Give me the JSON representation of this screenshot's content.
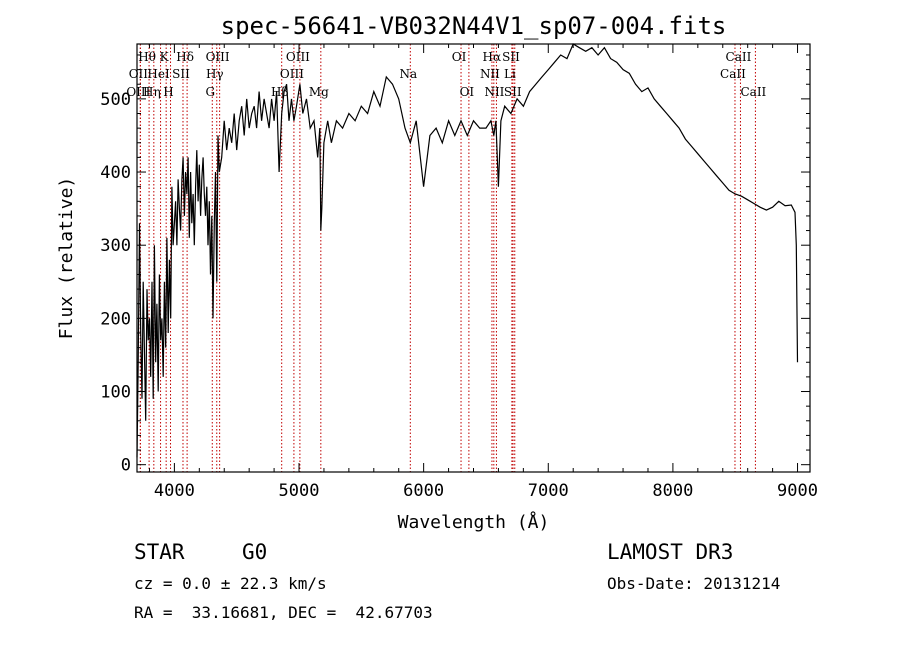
{
  "chart_data": {
    "type": "line",
    "title": "spec-56641-VB032N44V1_sp07-004.fits",
    "xlabel": "Wavelength (Å)",
    "ylabel": "Flux (relative)",
    "xlim": [
      3700,
      9100
    ],
    "ylim": [
      -10,
      575
    ],
    "x_ticks": [
      4000,
      5000,
      6000,
      7000,
      8000,
      9000
    ],
    "y_ticks": [
      0,
      100,
      200,
      300,
      400,
      500
    ],
    "grid": false,
    "line_color": "#000000",
    "marker_color": "#c00000",
    "series": [
      {
        "name": "spectrum",
        "x": [
          3700,
          3710,
          3720,
          3730,
          3740,
          3750,
          3760,
          3770,
          3780,
          3790,
          3800,
          3810,
          3820,
          3830,
          3840,
          3850,
          3860,
          3870,
          3880,
          3890,
          3900,
          3910,
          3920,
          3930,
          3940,
          3950,
          3960,
          3970,
          3980,
          3990,
          4000,
          4010,
          4020,
          4030,
          4040,
          4050,
          4060,
          4070,
          4080,
          4090,
          4100,
          4110,
          4120,
          4130,
          4140,
          4150,
          4160,
          4170,
          4180,
          4190,
          4200,
          4210,
          4220,
          4230,
          4240,
          4250,
          4260,
          4270,
          4280,
          4290,
          4300,
          4310,
          4320,
          4330,
          4340,
          4350,
          4360,
          4380,
          4400,
          4420,
          4440,
          4460,
          4480,
          4500,
          4520,
          4540,
          4560,
          4580,
          4600,
          4620,
          4640,
          4660,
          4680,
          4700,
          4720,
          4740,
          4760,
          4780,
          4800,
          4820,
          4840,
          4861,
          4880,
          4900,
          4920,
          4940,
          4959,
          4980,
          5007,
          5030,
          5060,
          5090,
          5120,
          5150,
          5167,
          5172,
          5175,
          5183,
          5200,
          5230,
          5260,
          5300,
          5350,
          5400,
          5450,
          5500,
          5550,
          5600,
          5650,
          5700,
          5750,
          5800,
          5850,
          5893,
          5940,
          6000,
          6050,
          6100,
          6150,
          6200,
          6250,
          6300,
          6350,
          6400,
          6450,
          6500,
          6540,
          6563,
          6580,
          6600,
          6620,
          6650,
          6700,
          6750,
          6800,
          6850,
          6900,
          6950,
          7000,
          7050,
          7100,
          7150,
          7200,
          7250,
          7300,
          7350,
          7400,
          7450,
          7500,
          7550,
          7600,
          7650,
          7700,
          7750,
          7800,
          7850,
          7900,
          7950,
          8000,
          8050,
          8100,
          8150,
          8200,
          8250,
          8300,
          8350,
          8400,
          8450,
          8500,
          8550,
          8600,
          8650,
          8700,
          8750,
          8800,
          8850,
          8900,
          8950,
          8980,
          8990,
          9000
        ],
        "values": [
          10,
          140,
          330,
          180,
          90,
          250,
          150,
          60,
          240,
          170,
          200,
          120,
          250,
          90,
          300,
          140,
          220,
          100,
          260,
          170,
          200,
          120,
          250,
          160,
          310,
          180,
          280,
          200,
          380,
          300,
          330,
          360,
          300,
          390,
          350,
          320,
          390,
          420,
          340,
          400,
          370,
          420,
          310,
          400,
          330,
          370,
          300,
          380,
          430,
          360,
          410,
          340,
          390,
          420,
          370,
          340,
          380,
          300,
          360,
          260,
          340,
          200,
          330,
          400,
          250,
          450,
          400,
          420,
          470,
          430,
          460,
          440,
          480,
          430,
          470,
          490,
          450,
          500,
          460,
          480,
          490,
          460,
          510,
          470,
          500,
          480,
          460,
          500,
          470,
          510,
          400,
          480,
          510,
          520,
          470,
          500,
          470,
          490,
          520,
          480,
          500,
          460,
          470,
          420,
          460,
          370,
          320,
          350,
          440,
          470,
          440,
          470,
          460,
          480,
          470,
          490,
          480,
          510,
          490,
          530,
          520,
          500,
          460,
          440,
          470,
          380,
          450,
          460,
          440,
          470,
          450,
          470,
          450,
          470,
          460,
          460,
          470,
          450,
          470,
          380,
          470,
          490,
          480,
          500,
          490,
          510,
          520,
          530,
          540,
          550,
          560,
          555,
          575,
          570,
          565,
          570,
          560,
          570,
          555,
          550,
          540,
          535,
          520,
          510,
          515,
          500,
          490,
          480,
          470,
          460,
          445,
          435,
          425,
          415,
          405,
          395,
          385,
          375,
          370,
          367,
          362,
          357,
          352,
          348,
          352,
          360,
          354,
          355,
          345,
          300,
          140
        ]
      }
    ],
    "lines": [
      {
        "label": "Hθ",
        "wavelength": 3797
      },
      {
        "label": "OII",
        "wavelength": 3727
      },
      {
        "label": "OIII",
        "wavelength": 3727
      },
      {
        "label": "K",
        "wavelength": 3934
      },
      {
        "label": "HeI",
        "wavelength": 3889
      },
      {
        "label": "Hη",
        "wavelength": 3835
      },
      {
        "label": "Hδ",
        "wavelength": 4102
      },
      {
        "label": "SII",
        "wavelength": 4069
      },
      {
        "label": "H",
        "wavelength": 3969
      },
      {
        "label": "OIII",
        "wavelength": 4363
      },
      {
        "label": "Hγ",
        "wavelength": 4340
      },
      {
        "label": "G",
        "wavelength": 4304
      },
      {
        "label": "Hβ",
        "wavelength": 4861
      },
      {
        "label": "OIII",
        "wavelength": 5007
      },
      {
        "label": "OIII",
        "wavelength": 4959
      },
      {
        "label": "Mg",
        "wavelength": 5175
      },
      {
        "label": "Na",
        "wavelength": 5893
      },
      {
        "label": "OI",
        "wavelength": 6300
      },
      {
        "label": "OI",
        "wavelength": 6363
      },
      {
        "label": "Hα",
        "wavelength": 6563
      },
      {
        "label": "SII",
        "wavelength": 6717
      },
      {
        "label": "NII",
        "wavelength": 6548
      },
      {
        "label": "Li",
        "wavelength": 6708
      },
      {
        "label": "NII",
        "wavelength": 6584
      },
      {
        "label": "SII",
        "wavelength": 6731
      },
      {
        "label": "CaII",
        "wavelength": 8542
      },
      {
        "label": "CaII",
        "wavelength": 8498
      },
      {
        "label": "CaII",
        "wavelength": 8662
      }
    ]
  },
  "info": {
    "class": "STAR",
    "subclass": "G0",
    "survey": "LAMOST DR3",
    "redshift": "cz = 0.0 ± 22.3 km/s",
    "obs_date": "Obs-Date: 20131214",
    "coords": "RA =  33.16681, DEC =  42.67703"
  }
}
